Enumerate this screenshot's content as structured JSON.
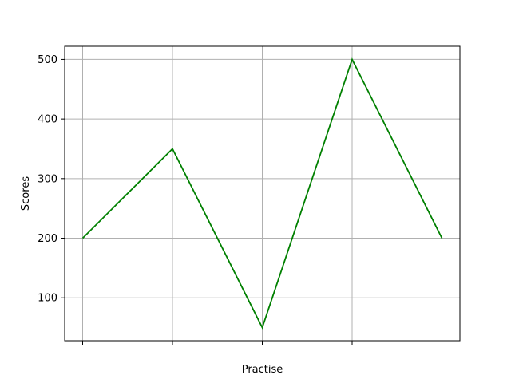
{
  "chart_data": {
    "type": "line",
    "title": "",
    "xlabel": "Practise",
    "ylabel": "Scores",
    "x": [
      0,
      1,
      2,
      3,
      4
    ],
    "x_tick_labels": [
      "",
      "",
      "",
      "",
      ""
    ],
    "series": [
      {
        "values": [
          200,
          350,
          50,
          500,
          200
        ],
        "color": "#008000"
      }
    ],
    "xlim": [
      -0.2,
      4.2
    ],
    "ylim": [
      28,
      522
    ],
    "y_ticks": [
      100,
      200,
      300,
      400,
      500
    ],
    "y_tick_labels": [
      "100",
      "200",
      "300",
      "400",
      "500"
    ],
    "grid": true,
    "legend": "none",
    "colors": {
      "grid": "#b0b0b0",
      "axes": "#000000"
    }
  }
}
